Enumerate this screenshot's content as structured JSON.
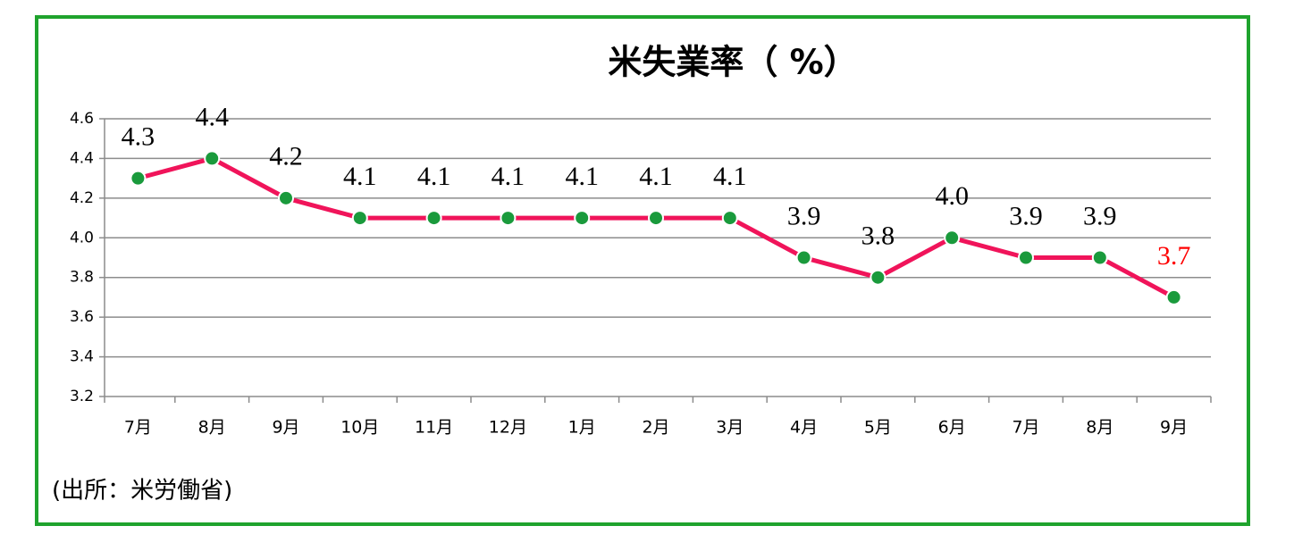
{
  "chart_data": {
    "type": "line",
    "title": "米失業率（ %）",
    "categories": [
      "7月",
      "8月",
      "9月",
      "10月",
      "11月",
      "12月",
      "1月",
      "2月",
      "3月",
      "4月",
      "5月",
      "6月",
      "7月",
      "8月",
      "9月"
    ],
    "series": [
      {
        "color": "#f0145a",
        "marker_color": "#1a9a3c",
        "values": [
          4.3,
          4.4,
          4.2,
          4.1,
          4.1,
          4.1,
          4.1,
          4.1,
          4.1,
          3.9,
          3.8,
          4,
          3.9,
          3.9,
          3.7
        ],
        "value_labels": [
          "4.3",
          "4.4",
          "4.2",
          "4.1",
          "4.1",
          "4.1",
          "4.1",
          "4.1",
          "4.1",
          "3.9",
          "3.8",
          "4.0",
          "3.9",
          "3.9",
          "3.7"
        ]
      }
    ],
    "last_label_color": "#ff0000",
    "ylim": [
      3.2,
      4.6
    ],
    "yticks": [
      3.2,
      3.4,
      3.6,
      3.8,
      {
        "value": 4,
        "label": "4.0"
      },
      4.2,
      4.4,
      4.6
    ],
    "grid": true,
    "source": "(出所：米労働省)"
  }
}
